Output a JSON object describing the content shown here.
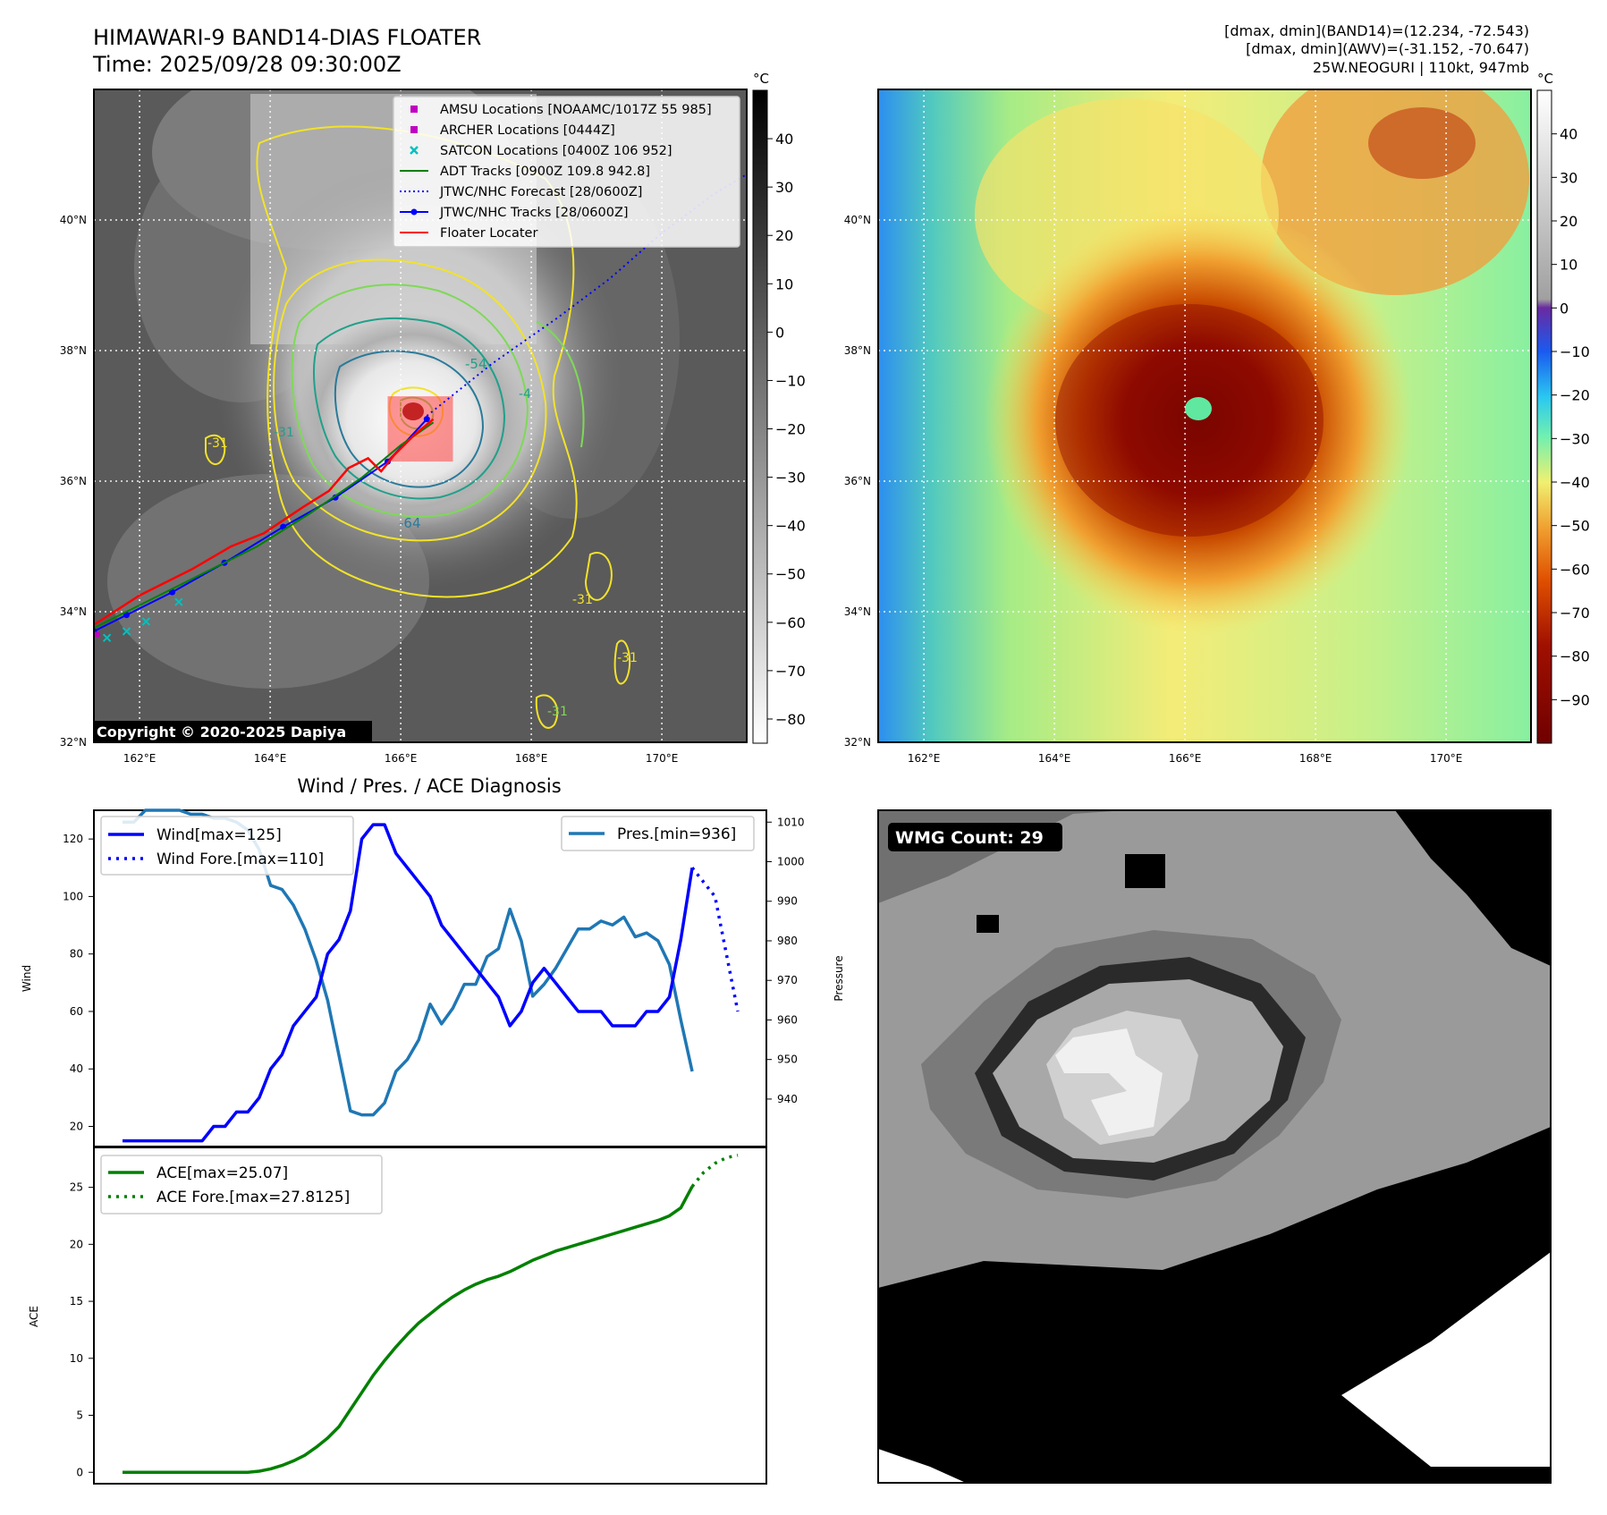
{
  "header": {
    "title": "HIMAWARI-9 BAND14-DIAS FLOATER",
    "time": "Time: 2025/09/28 09:30:00Z",
    "stats_band14": "[dmax, dmin](BAND14)=(12.234, -72.543)",
    "stats_awv": "[dmax, dmin](AWV)=(-31.152, -70.647)",
    "storm": "25W.NEOGURI | 110kt, 947mb"
  },
  "map": {
    "lat_labels": [
      "40°N",
      "38°N",
      "36°N",
      "34°N",
      "32°N"
    ],
    "lat_values": [
      40,
      38,
      36,
      34,
      32
    ],
    "lon_labels": [
      "162°E",
      "164°E",
      "166°E",
      "168°E",
      "170°E"
    ],
    "lon_values": [
      162,
      164,
      166,
      168,
      170
    ],
    "lon_range": [
      161.3,
      171.3
    ],
    "lat_range": [
      32,
      42
    ],
    "copyright": "Copyright © 2020-2025 Dapiya",
    "contour_labels": [
      "-54",
      "-64",
      "-31",
      "-31",
      "-31",
      "-31",
      "-31",
      "-4"
    ],
    "colors": {
      "yellow": "#f2e22a",
      "green": "#7ed957",
      "teal": "#20a08a",
      "blue_teal": "#2a7a9a"
    }
  },
  "legend": {
    "items": [
      {
        "label": "AMSU Locations [NOAAMC/1017Z 55 985]",
        "color": "#c000c0",
        "kind": "square"
      },
      {
        "label": "ARCHER Locations [0444Z]",
        "color": "#c000c0",
        "kind": "square"
      },
      {
        "label": "SATCON Locations [0400Z 106 952]",
        "color": "#00c0c0",
        "kind": "x"
      },
      {
        "label": "ADT Tracks [0900Z 109.8 942.8]",
        "color": "#008000",
        "kind": "line"
      },
      {
        "label": "JTWC/NHC Forecast [28/0600Z]",
        "color": "#0000ff",
        "kind": "dotted"
      },
      {
        "label": "JTWC/NHC Tracks [28/0600Z]",
        "color": "#0000ff",
        "kind": "linedot"
      },
      {
        "label": "Floater Locater",
        "color": "#ff0000",
        "kind": "line"
      }
    ]
  },
  "colorbar_gray": {
    "unit": "°C",
    "ticks": [
      "40",
      "30",
      "20",
      "10",
      "0",
      "−10",
      "−20",
      "−30",
      "−40",
      "−50",
      "−60",
      "−70",
      "−80"
    ],
    "tick_values": [
      40,
      30,
      20,
      10,
      0,
      -10,
      -20,
      -30,
      -40,
      -50,
      -60,
      -70,
      -80
    ],
    "range": [
      -85,
      50
    ]
  },
  "colorbar_color": {
    "unit": "°C",
    "ticks": [
      "40",
      "30",
      "20",
      "10",
      "0",
      "−10",
      "−20",
      "−30",
      "−40",
      "−50",
      "−60",
      "−70",
      "−80",
      "−90"
    ],
    "tick_values": [
      40,
      30,
      20,
      10,
      0,
      -10,
      -20,
      -30,
      -40,
      -50,
      -60,
      -70,
      -80,
      -90
    ],
    "range": [
      -100,
      50
    ]
  },
  "diagnosis": {
    "title": "Wind / Pres. / ACE Diagnosis",
    "wind_ylabel": "Wind",
    "pres_ylabel": "Pressure",
    "ace_ylabel": "ACE",
    "legend_wind": "Wind[max=125]",
    "legend_wind_fore": "Wind Fore.[max=110]",
    "legend_pres": "Pres.[min=936]",
    "legend_ace": "ACE[max=25.07]",
    "legend_ace_fore": "ACE Fore.[max=27.8125]",
    "wmg": "WMG Count: 29",
    "colors": {
      "wind": "#0000ff",
      "pres": "#1f77b4",
      "ace": "#008000"
    }
  },
  "chart_data": [
    {
      "type": "line",
      "title": "Wind / Pres. / ACE Diagnosis",
      "xlabel": "",
      "ylabel": "Wind",
      "ylim": [
        13,
        130
      ],
      "yticks": [
        20,
        40,
        60,
        80,
        100,
        120
      ],
      "x_index_range": [
        0,
        27
      ],
      "series": [
        {
          "name": "Wind[max=125]",
          "style": "solid",
          "x": [
            0,
            1,
            2,
            3,
            4,
            5,
            6,
            7,
            8,
            9,
            10,
            11,
            12,
            13,
            14,
            15,
            16,
            17,
            18,
            19,
            20,
            21,
            22,
            23,
            24,
            25,
            26,
            27,
            28,
            29,
            30,
            31,
            32,
            33,
            34,
            35,
            36,
            37,
            38,
            39,
            40,
            41,
            42,
            43,
            44,
            45,
            46,
            47,
            48,
            49,
            50
          ],
          "values": [
            15,
            15,
            15,
            15,
            15,
            15,
            15,
            15,
            20,
            20,
            25,
            25,
            30,
            40,
            45,
            55,
            60,
            65,
            80,
            85,
            95,
            120,
            125,
            125,
            115,
            110,
            105,
            100,
            90,
            85,
            80,
            75,
            70,
            65,
            55,
            60,
            70,
            75,
            70,
            65,
            60,
            60,
            60,
            55,
            55,
            55,
            60,
            60,
            65,
            85,
            110
          ]
        },
        {
          "name": "Wind Fore.[max=110]",
          "style": "dotted",
          "x": [
            50,
            51,
            52,
            53,
            54
          ],
          "values": [
            110,
            105,
            100,
            80,
            60
          ]
        }
      ]
    },
    {
      "type": "line",
      "ylabel": "Pressure",
      "ylim": [
        928,
        1013
      ],
      "yticks": [
        940,
        950,
        960,
        970,
        980,
        990,
        1000,
        1010
      ],
      "series": [
        {
          "name": "Pres.[min=936]",
          "style": "solid",
          "x": [
            0,
            1,
            2,
            3,
            4,
            5,
            6,
            7,
            8,
            9,
            10,
            11,
            12,
            13,
            14,
            15,
            16,
            17,
            18,
            19,
            20,
            21,
            22,
            23,
            24,
            25,
            26,
            27,
            28,
            29,
            30,
            31,
            32,
            33,
            34,
            35,
            36,
            37,
            38,
            39,
            40,
            41,
            42,
            43,
            44,
            45,
            46,
            47,
            48,
            49,
            50
          ],
          "values": [
            1010,
            1010,
            1013,
            1013,
            1013,
            1013,
            1012,
            1012,
            1011,
            1011,
            1010,
            1008,
            1003,
            994,
            993,
            989,
            983,
            975,
            965,
            951,
            937,
            936,
            936,
            939,
            947,
            950,
            955,
            964,
            959,
            963,
            969,
            969,
            976,
            978,
            988,
            980,
            966,
            969,
            973,
            978,
            983,
            983,
            985,
            984,
            986,
            981,
            982,
            980,
            974,
            960,
            947
          ]
        }
      ]
    },
    {
      "type": "line",
      "ylabel": "ACE",
      "ylim": [
        -1,
        28.5
      ],
      "yticks": [
        0,
        5,
        10,
        15,
        20,
        25
      ],
      "series": [
        {
          "name": "ACE[max=25.07]",
          "style": "solid",
          "x": [
            0,
            1,
            2,
            3,
            4,
            5,
            6,
            7,
            8,
            9,
            10,
            11,
            12,
            13,
            14,
            15,
            16,
            17,
            18,
            19,
            20,
            21,
            22,
            23,
            24,
            25,
            26,
            27,
            28,
            29,
            30,
            31,
            32,
            33,
            34,
            35,
            36,
            37,
            38,
            39,
            40,
            41,
            42,
            43,
            44,
            45,
            46,
            47,
            48,
            49,
            50
          ],
          "values": [
            0,
            0,
            0,
            0,
            0,
            0,
            0,
            0,
            0,
            0,
            0,
            0,
            0.1,
            0.3,
            0.6,
            1.0,
            1.5,
            2.2,
            3.0,
            4.0,
            5.5,
            7.0,
            8.5,
            9.8,
            11.0,
            12.1,
            13.1,
            13.9,
            14.7,
            15.4,
            16.0,
            16.5,
            16.9,
            17.2,
            17.6,
            18.1,
            18.6,
            19.0,
            19.4,
            19.7,
            20.0,
            20.3,
            20.6,
            20.9,
            21.2,
            21.5,
            21.8,
            22.1,
            22.5,
            23.2,
            25.07
          ]
        },
        {
          "name": "ACE Fore.[max=27.8125]",
          "style": "dotted",
          "x": [
            50,
            51,
            52,
            53,
            54
          ],
          "values": [
            25.07,
            26.3,
            27.1,
            27.6,
            27.8125
          ]
        }
      ]
    }
  ]
}
